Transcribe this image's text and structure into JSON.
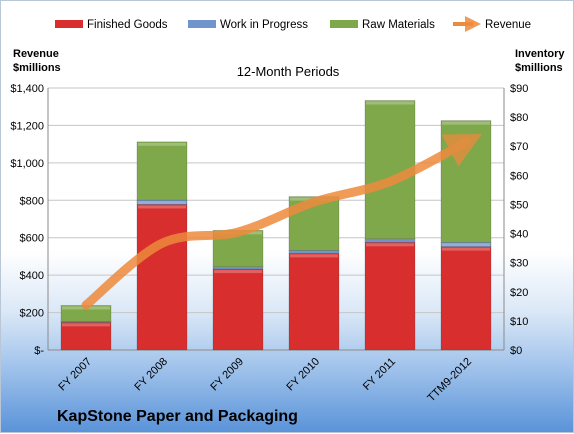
{
  "chart_data": {
    "type": "bar",
    "subtype": "stacked-bar-with-line",
    "title": "12-Month Periods",
    "footer_title": "KapStone Paper and Packaging",
    "left_axis_label_line1": "Revenue",
    "left_axis_label_line2": "$millions",
    "right_axis_label_line1": "Inventory",
    "right_axis_label_line2": "$millions",
    "categories": [
      "FY 2007",
      "FY 2008",
      "FY 2009",
      "FY 2010",
      "FY 2011",
      "TTM9-2012"
    ],
    "left_ticks": [
      "$-",
      "$200",
      "$400",
      "$600",
      "$800",
      "$1,000",
      "$1,200",
      "$1,400"
    ],
    "right_ticks": [
      "$0",
      "$10",
      "$20",
      "$30",
      "$40",
      "$50",
      "$60",
      "$70",
      "$80",
      "$90"
    ],
    "left_ylim": [
      0,
      1400
    ],
    "right_ylim": [
      0,
      90
    ],
    "grid": "horizontal",
    "legend_position": "top",
    "series": [
      {
        "name": "Finished Goods",
        "axis": "right",
        "kind": "bar",
        "color": "#d82e2e",
        "values": [
          9.5,
          50.0,
          27.8,
          33.2,
          37.0,
          35.5
        ]
      },
      {
        "name": "Work in Progress",
        "axis": "right",
        "kind": "bar",
        "color": "#6f95cc",
        "values": [
          0.3,
          1.5,
          0.8,
          1.0,
          1.2,
          1.5
        ]
      },
      {
        "name": "Raw Materials",
        "axis": "right",
        "kind": "bar",
        "color": "#7fa84b",
        "values": [
          5.5,
          20.0,
          12.5,
          18.5,
          47.5,
          41.8
        ]
      },
      {
        "name": "Revenue",
        "axis": "left",
        "kind": "line",
        "color": "#ee8a3c",
        "values": [
          240,
          570,
          630,
          790,
          900,
          1110
        ]
      }
    ]
  }
}
